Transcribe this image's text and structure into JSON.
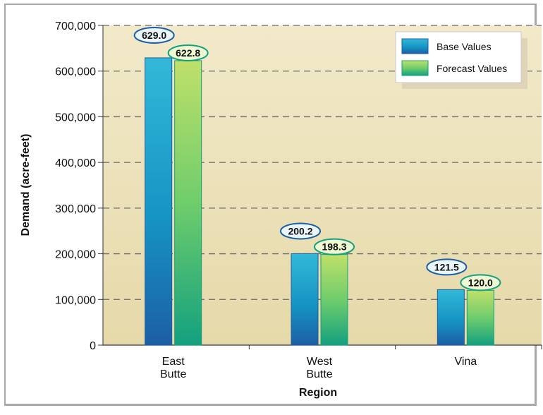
{
  "chart_data": {
    "type": "bar",
    "title": "",
    "xlabel": "Region",
    "ylabel": "Demand (acre-feet)",
    "categories": [
      [
        "East",
        "Butte"
      ],
      [
        "West",
        "Butte"
      ],
      [
        "Vina"
      ]
    ],
    "series": [
      {
        "name": "Base Values",
        "values": [
          629000,
          200200,
          121500
        ],
        "labels": [
          "629.0",
          "200.2",
          "121.5"
        ],
        "color": "#1f9ec6"
      },
      {
        "name": "Forecast Values",
        "values": [
          622800,
          198300,
          120000
        ],
        "labels": [
          "622.8",
          "198.3",
          "120.0"
        ],
        "color": "#7fd15a"
      }
    ],
    "ylim": [
      0,
      700000
    ],
    "yticks": [
      0,
      100000,
      200000,
      300000,
      400000,
      500000,
      600000,
      700000
    ],
    "ytick_labels": [
      "0",
      "100,000",
      "200,000",
      "300,000",
      "400,000",
      "500,000",
      "600,000",
      "700,000"
    ],
    "grid": true,
    "legend_position": "top-right",
    "plot_background": "#eee3bd"
  }
}
